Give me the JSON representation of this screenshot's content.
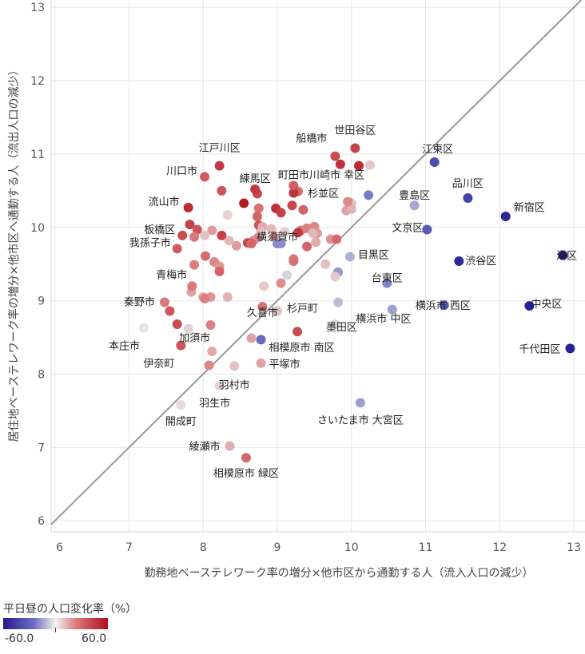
{
  "chart_data": {
    "type": "scatter",
    "xlabel": "勤務地ベーステレワーク率の増分×他市区から通勤する人（流入人口の減少）",
    "ylabel": "居住地ベーステレワーク率の増分×他市区へ通勤する人（流出人口の減少）",
    "xlim": [
      5.95,
      13.15
    ],
    "ylim": [
      5.85,
      13.1
    ],
    "xticks": [
      6,
      7,
      8,
      9,
      10,
      11,
      12,
      13
    ],
    "yticks": [
      6,
      7,
      8,
      9,
      10,
      11,
      12,
      13
    ],
    "reference_line": "y = x",
    "color_scale": {
      "title": "平日昼の人口変化率（%）",
      "min": -60.0,
      "max": 60.0,
      "min_label": "-60.0",
      "max_label": "60.0"
    },
    "labeled_points": [
      {
        "label": "世田谷区",
        "x": 10.05,
        "y": 11.08,
        "c": 45
      },
      {
        "label": "江東区",
        "x": 11.12,
        "y": 10.89,
        "c": -45
      },
      {
        "label": "江戸川区",
        "x": 8.22,
        "y": 10.84,
        "c": 48
      },
      {
        "label": "船橋市",
        "x": 9.78,
        "y": 10.97,
        "c": 42
      },
      {
        "label": "川口市",
        "x": 8.02,
        "y": 10.69,
        "c": 38
      },
      {
        "label": "練馬区",
        "x": 8.7,
        "y": 10.52,
        "c": 48
      },
      {
        "label": "町田市",
        "x": 9.22,
        "y": 10.57,
        "c": 38
      },
      {
        "label": "杉並区",
        "x": 9.95,
        "y": 10.35,
        "c": 25
      },
      {
        "label": "川崎市 幸区",
        "x": 10.23,
        "y": 10.44,
        "c": -30
      },
      {
        "label": "品川区",
        "x": 11.57,
        "y": 10.4,
        "c": -48
      },
      {
        "label": "豊島区",
        "x": 10.85,
        "y": 10.3,
        "c": -18
      },
      {
        "label": "新宿区",
        "x": 12.08,
        "y": 10.15,
        "c": -55
      },
      {
        "label": "流山市",
        "x": 7.8,
        "y": 10.27,
        "c": 52
      },
      {
        "label": "板橋区",
        "x": 7.72,
        "y": 9.89,
        "c": 42
      },
      {
        "label": "文京区",
        "x": 11.02,
        "y": 9.97,
        "c": -40
      },
      {
        "label": "目黒区",
        "x": 9.98,
        "y": 9.6,
        "c": -15
      },
      {
        "label": "我孫子市",
        "x": 7.65,
        "y": 9.71,
        "c": 38
      },
      {
        "label": "横須賀市",
        "x": 9.0,
        "y": 9.78,
        "c": -25
      },
      {
        "label": "渋谷区",
        "x": 11.45,
        "y": 9.54,
        "c": -55
      },
      {
        "label": "港区",
        "x": 12.85,
        "y": 9.62,
        "c": -60
      },
      {
        "label": "青梅市",
        "x": 7.85,
        "y": 9.2,
        "c": 30
      },
      {
        "label": "台東区",
        "x": 10.48,
        "y": 9.24,
        "c": -28
      },
      {
        "label": "秦野市",
        "x": 7.48,
        "y": 8.98,
        "c": 30
      },
      {
        "label": "久喜市",
        "x": 8.8,
        "y": 8.92,
        "c": 32
      },
      {
        "label": "杉戸町",
        "x": 9.0,
        "y": 8.86,
        "c": 10
      },
      {
        "label": "横浜市 西区",
        "x": 11.25,
        "y": 8.94,
        "c": -42
      },
      {
        "label": "中央区",
        "x": 12.4,
        "y": 8.93,
        "c": -58
      },
      {
        "label": "横浜市 中区",
        "x": 10.55,
        "y": 8.88,
        "c": -20
      },
      {
        "label": "本庄市",
        "x": 7.2,
        "y": 8.63,
        "c": 0
      },
      {
        "label": "加須市",
        "x": 7.8,
        "y": 8.62,
        "c": 5
      },
      {
        "label": "墨田区",
        "x": 9.78,
        "y": 8.68,
        "c": -5
      },
      {
        "label": "相模原市 南区",
        "x": 8.78,
        "y": 8.47,
        "c": -35
      },
      {
        "label": "千代田区",
        "x": 12.95,
        "y": 8.35,
        "c": -58
      },
      {
        "label": "伊奈町",
        "x": 7.7,
        "y": 8.39,
        "c": 40
      },
      {
        "label": "平塚市",
        "x": 8.78,
        "y": 8.15,
        "c": 18
      },
      {
        "label": "羽村市",
        "x": 8.42,
        "y": 8.11,
        "c": 10
      },
      {
        "label": "羽生市",
        "x": 8.22,
        "y": 7.84,
        "c": 5
      },
      {
        "label": "さいたま市 大宮区",
        "x": 10.12,
        "y": 7.61,
        "c": -20
      },
      {
        "label": "開成町",
        "x": 7.7,
        "y": 7.58,
        "c": 3
      },
      {
        "label": "綾瀬市",
        "x": 8.36,
        "y": 7.02,
        "c": 15
      },
      {
        "label": "相模原市 緑区",
        "x": 8.58,
        "y": 6.86,
        "c": 35
      }
    ],
    "points": [
      {
        "x": 8.25,
        "y": 10.5,
        "c": 40
      },
      {
        "x": 8.33,
        "y": 10.17,
        "c": 5
      },
      {
        "x": 8.55,
        "y": 10.33,
        "c": 58
      },
      {
        "x": 8.73,
        "y": 10.46,
        "c": 44
      },
      {
        "x": 8.75,
        "y": 10.26,
        "c": 32
      },
      {
        "x": 8.73,
        "y": 10.15,
        "c": 36
      },
      {
        "x": 8.75,
        "y": 10.03,
        "c": 40
      },
      {
        "x": 8.78,
        "y": 9.95,
        "c": 38
      },
      {
        "x": 8.75,
        "y": 9.87,
        "c": 30
      },
      {
        "x": 8.68,
        "y": 9.82,
        "c": 26
      },
      {
        "x": 8.6,
        "y": 9.79,
        "c": 44
      },
      {
        "x": 8.45,
        "y": 9.75,
        "c": 20
      },
      {
        "x": 8.35,
        "y": 9.82,
        "c": 12
      },
      {
        "x": 8.25,
        "y": 9.89,
        "c": 46
      },
      {
        "x": 8.12,
        "y": 9.96,
        "c": 20
      },
      {
        "x": 8.02,
        "y": 9.89,
        "c": 10
      },
      {
        "x": 7.82,
        "y": 10.04,
        "c": 46
      },
      {
        "x": 7.92,
        "y": 9.97,
        "c": 40
      },
      {
        "x": 7.88,
        "y": 9.87,
        "c": 30
      },
      {
        "x": 7.88,
        "y": 9.49,
        "c": 28
      },
      {
        "x": 8.03,
        "y": 9.61,
        "c": 34
      },
      {
        "x": 8.15,
        "y": 9.53,
        "c": 26
      },
      {
        "x": 8.22,
        "y": 9.47,
        "c": 22
      },
      {
        "x": 8.22,
        "y": 9.4,
        "c": 36
      },
      {
        "x": 8.33,
        "y": 9.05,
        "c": 14
      },
      {
        "x": 8.1,
        "y": 9.05,
        "c": 22
      },
      {
        "x": 8.0,
        "y": 9.05,
        "c": 16
      },
      {
        "x": 7.84,
        "y": 9.12,
        "c": 18
      },
      {
        "x": 8.02,
        "y": 9.03,
        "c": 28
      },
      {
        "x": 7.55,
        "y": 8.86,
        "c": 40
      },
      {
        "x": 7.65,
        "y": 8.68,
        "c": 42
      },
      {
        "x": 8.1,
        "y": 8.67,
        "c": 28
      },
      {
        "x": 8.65,
        "y": 8.49,
        "c": 18
      },
      {
        "x": 8.12,
        "y": 8.31,
        "c": 16
      },
      {
        "x": 8.08,
        "y": 8.12,
        "c": 26
      },
      {
        "x": 8.98,
        "y": 10.26,
        "c": 50
      },
      {
        "x": 9.05,
        "y": 10.2,
        "c": 46
      },
      {
        "x": 9.2,
        "y": 10.3,
        "c": 44
      },
      {
        "x": 9.28,
        "y": 10.49,
        "c": 34
      },
      {
        "x": 9.22,
        "y": 10.47,
        "c": 50
      },
      {
        "x": 9.35,
        "y": 10.24,
        "c": 36
      },
      {
        "x": 9.32,
        "y": 9.96,
        "c": 30
      },
      {
        "x": 9.28,
        "y": 9.93,
        "c": 48
      },
      {
        "x": 9.4,
        "y": 9.99,
        "c": 28
      },
      {
        "x": 9.5,
        "y": 10.01,
        "c": 26
      },
      {
        "x": 9.54,
        "y": 9.92,
        "c": 20
      },
      {
        "x": 9.52,
        "y": 9.8,
        "c": 16
      },
      {
        "x": 9.72,
        "y": 9.84,
        "c": 22
      },
      {
        "x": 9.8,
        "y": 9.84,
        "c": 34
      },
      {
        "x": 9.4,
        "y": 9.74,
        "c": 36
      },
      {
        "x": 9.22,
        "y": 9.57,
        "c": 28
      },
      {
        "x": 9.22,
        "y": 9.54,
        "c": 32
      },
      {
        "x": 9.13,
        "y": 9.35,
        "c": -5
      },
      {
        "x": 9.05,
        "y": 9.24,
        "c": 24
      },
      {
        "x": 8.82,
        "y": 9.2,
        "c": 8
      },
      {
        "x": 8.92,
        "y": 9.98,
        "c": 12
      },
      {
        "x": 8.96,
        "y": 9.87,
        "c": 22
      },
      {
        "x": 8.8,
        "y": 10.01,
        "c": 16
      },
      {
        "x": 8.78,
        "y": 9.93,
        "c": 10
      },
      {
        "x": 9.1,
        "y": 9.94,
        "c": 6
      },
      {
        "x": 9.05,
        "y": 9.78,
        "c": -25
      },
      {
        "x": 9.27,
        "y": 8.58,
        "c": 42
      },
      {
        "x": 9.65,
        "y": 9.5,
        "c": 10
      },
      {
        "x": 9.82,
        "y": 8.98,
        "c": -12
      },
      {
        "x": 9.82,
        "y": 9.39,
        "c": -22
      },
      {
        "x": 9.78,
        "y": 9.33,
        "c": 8
      },
      {
        "x": 9.93,
        "y": 10.23,
        "c": 18
      },
      {
        "x": 9.98,
        "y": 10.34,
        "c": 30
      },
      {
        "x": 10.25,
        "y": 10.85,
        "c": 8
      },
      {
        "x": 10.1,
        "y": 10.84,
        "c": 52
      },
      {
        "x": 10.0,
        "y": 10.33,
        "c": 10
      },
      {
        "x": 9.85,
        "y": 10.86,
        "c": 50
      },
      {
        "x": 10.0,
        "y": 10.25,
        "c": 14
      },
      {
        "x": 9.48,
        "y": 9.92,
        "c": 12
      },
      {
        "x": 8.65,
        "y": 9.78,
        "c": 36
      }
    ]
  }
}
